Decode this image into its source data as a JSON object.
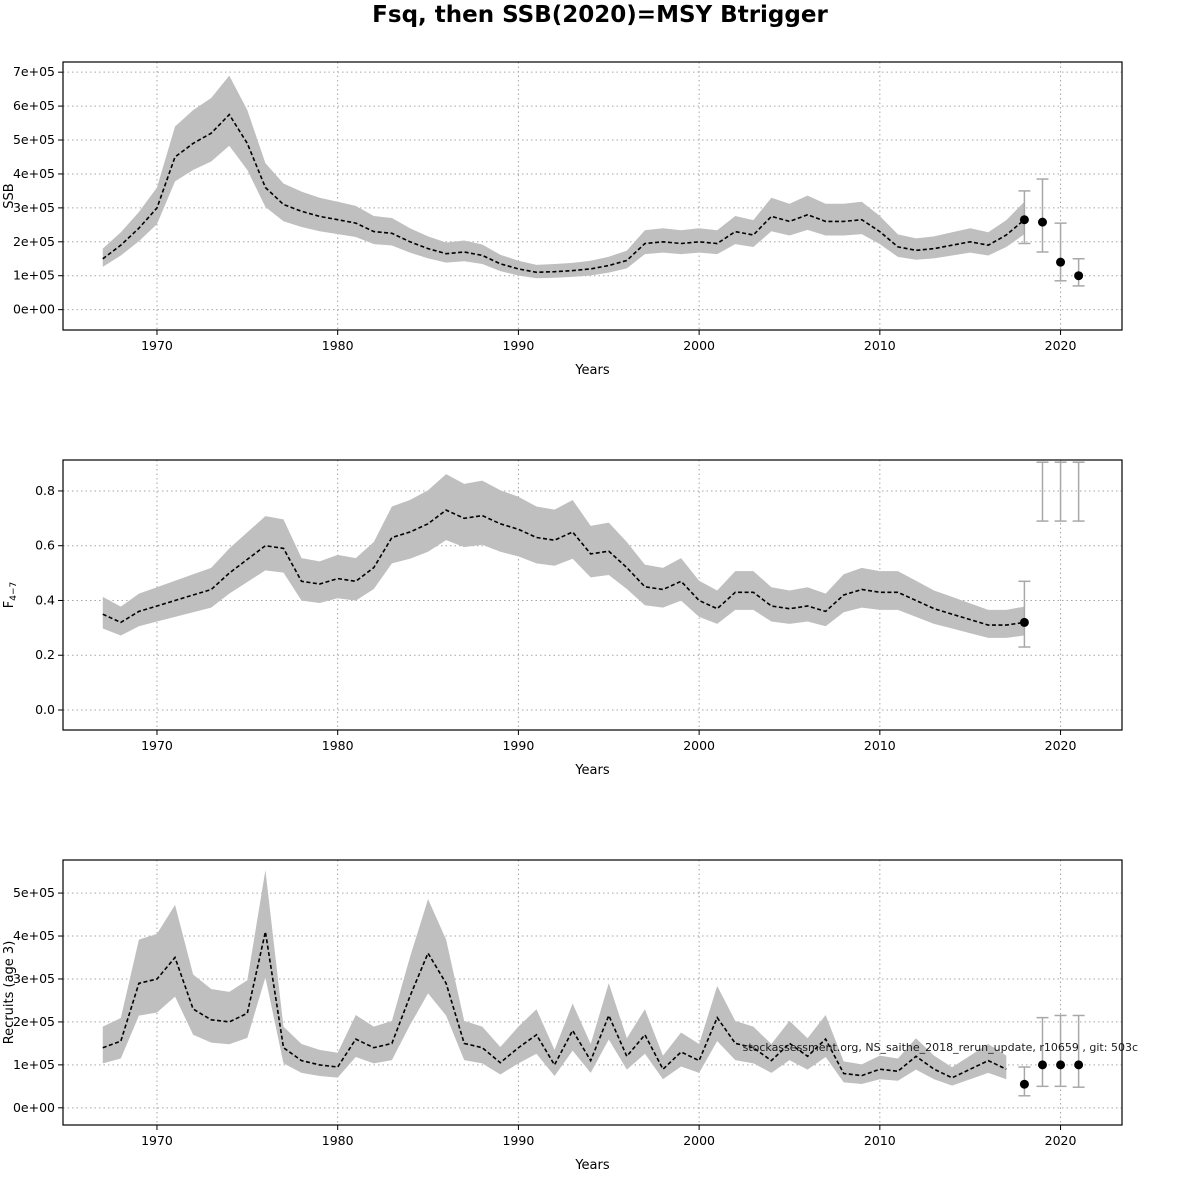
{
  "page": {
    "title": "Fsq, then SSB(2020)=MSY Btrigger"
  },
  "watermark": "stockassessment.org, NS_saithe_2018_rerun_update, r10659 , git: 503c",
  "colors": {
    "background": "#ffffff",
    "band": "#bfbfbf",
    "line": "#000000",
    "grid": "#a6a6a6",
    "error_bar": "#a8a8a8",
    "dot": "#000000",
    "box": "#000000"
  },
  "chart_data": [
    {
      "type": "line",
      "name": "ssb",
      "ylabel": "SSB",
      "xlabel": "Years",
      "legend": "none",
      "grid": true,
      "x_ticks": [
        1970,
        1980,
        1990,
        2000,
        2010,
        2020
      ],
      "xlim": [
        1964.8,
        2023.4
      ],
      "ylim": [
        -60000,
        730000
      ],
      "y_scale": 1000,
      "y_ticks": [
        0,
        100000,
        200000,
        300000,
        400000,
        500000,
        600000,
        700000
      ],
      "y_tick_labels": [
        "0e+00",
        "1e+05",
        "2e+05",
        "3e+05",
        "4e+05",
        "5e+05",
        "6e+05",
        "7e+05"
      ],
      "years_start": 1967,
      "estimate": [
        150,
        190,
        240,
        300,
        450,
        490,
        520,
        575,
        490,
        360,
        310,
        290,
        275,
        265,
        255,
        230,
        225,
        200,
        180,
        165,
        170,
        160,
        135,
        120,
        110,
        112,
        115,
        120,
        130,
        145,
        195,
        200,
        195,
        200,
        195,
        230,
        220,
        275,
        260,
        280,
        260,
        260,
        265,
        230,
        185,
        175,
        180,
        190,
        200,
        190,
        220,
        265
      ],
      "band_lower_factor": 0.84,
      "band_upper_factor": 1.2,
      "forecast": [
        {
          "year": 2018,
          "value": 265,
          "lower": 195,
          "upper": 350
        },
        {
          "year": 2019,
          "value": 258,
          "lower": 170,
          "upper": 385
        },
        {
          "year": 2020,
          "value": 140,
          "lower": 85,
          "upper": 255
        },
        {
          "year": 2021,
          "value": 100,
          "lower": 70,
          "upper": 150
        }
      ],
      "offscale_bars": []
    },
    {
      "type": "line",
      "name": "f-4-7",
      "ylabel": "F",
      "ylabel_sub": "4−7",
      "xlabel": "Years",
      "legend": "none",
      "grid": true,
      "x_ticks": [
        1970,
        1980,
        1990,
        2000,
        2010,
        2020
      ],
      "xlim": [
        1964.8,
        2023.4
      ],
      "ylim": [
        -0.073,
        0.913
      ],
      "y_scale": 1,
      "y_ticks": [
        0.0,
        0.2,
        0.4,
        0.6,
        0.8
      ],
      "y_tick_labels": [
        "0.0",
        "0.2",
        "0.4",
        "0.6",
        "0.8"
      ],
      "years_start": 1967,
      "estimate": [
        0.35,
        0.32,
        0.36,
        0.38,
        0.4,
        0.42,
        0.44,
        0.5,
        0.55,
        0.6,
        0.59,
        0.47,
        0.46,
        0.48,
        0.47,
        0.52,
        0.63,
        0.65,
        0.68,
        0.73,
        0.7,
        0.71,
        0.68,
        0.66,
        0.63,
        0.62,
        0.65,
        0.57,
        0.58,
        0.52,
        0.45,
        0.44,
        0.47,
        0.4,
        0.37,
        0.43,
        0.43,
        0.38,
        0.37,
        0.38,
        0.36,
        0.42,
        0.44,
        0.43,
        0.43,
        0.4,
        0.37,
        0.35,
        0.33,
        0.31,
        0.31,
        0.32
      ],
      "band_lower_factor": 0.85,
      "band_upper_factor": 1.18,
      "forecast": [
        {
          "year": 2018,
          "value": 0.32,
          "lower": 0.23,
          "upper": 0.47
        }
      ],
      "offscale_bars": [
        {
          "year": 2019,
          "lower": 0.69,
          "upper": 0.905
        },
        {
          "year": 2020,
          "lower": 0.69,
          "upper": 0.905
        },
        {
          "year": 2021,
          "lower": 0.69,
          "upper": 0.905
        }
      ]
    },
    {
      "type": "line",
      "name": "recruits",
      "ylabel": "Recruits (age 3)",
      "xlabel": "Years",
      "legend": "none",
      "grid": true,
      "x_ticks": [
        1970,
        1980,
        1990,
        2000,
        2010,
        2020
      ],
      "xlim": [
        1964.8,
        2023.4
      ],
      "ylim": [
        -40000,
        577000
      ],
      "y_scale": 1000,
      "y_ticks": [
        0,
        100000,
        200000,
        300000,
        400000,
        500000
      ],
      "y_tick_labels": [
        "0e+00",
        "1e+05",
        "2e+05",
        "3e+05",
        "4e+05",
        "5e+05"
      ],
      "years_start": 1967,
      "estimate": [
        140,
        155,
        290,
        300,
        350,
        230,
        205,
        200,
        220,
        410,
        140,
        110,
        100,
        95,
        160,
        140,
        150,
        260,
        360,
        290,
        150,
        140,
        105,
        140,
        170,
        100,
        180,
        110,
        215,
        120,
        170,
        90,
        130,
        110,
        210,
        150,
        140,
        110,
        150,
        120,
        160,
        80,
        75,
        90,
        85,
        120,
        90,
        70,
        90,
        110,
        90
      ],
      "band_lower_factor": 0.74,
      "band_upper_factor": 1.35,
      "forecast": [
        {
          "year": 2018,
          "value": 55,
          "lower": 28,
          "upper": 95
        },
        {
          "year": 2019,
          "value": 100,
          "lower": 50,
          "upper": 210
        },
        {
          "year": 2020,
          "value": 100,
          "lower": 50,
          "upper": 215
        },
        {
          "year": 2021,
          "value": 100,
          "lower": 48,
          "upper": 215
        }
      ],
      "offscale_bars": []
    }
  ]
}
